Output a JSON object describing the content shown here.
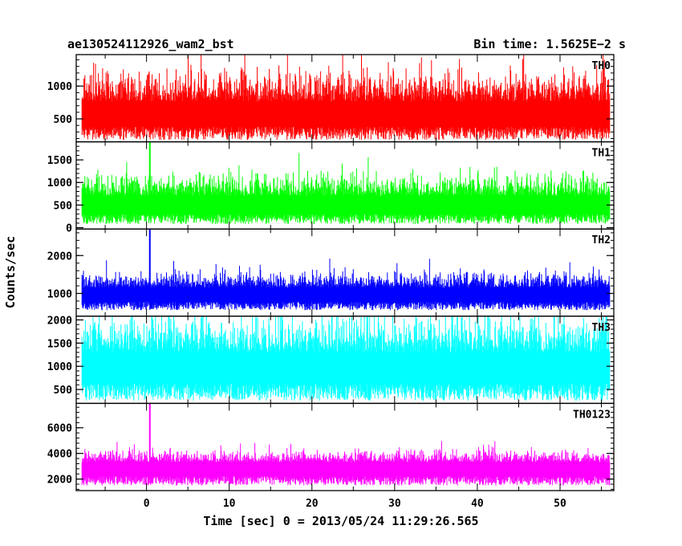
{
  "header": {
    "left": "ae130524112926_wam2_bst",
    "right": "Bin time: 1.5625E−2 s"
  },
  "chart_data": {
    "type": "line",
    "xlabel": "Time [sec] 0 = 2013/05/24 11:29:26.565",
    "ylabel": "Counts/sec",
    "xlim": [
      -8.5,
      56.5
    ],
    "xticks": [
      0,
      10,
      20,
      30,
      40,
      50
    ],
    "xtick_labels": [
      "0",
      "10",
      "20",
      "30",
      "40",
      "50"
    ],
    "x_data_range": [
      -7.8,
      56.0
    ],
    "series": [
      {
        "name": "TH0",
        "color": "#ff0000",
        "ylim": [
          150,
          1480
        ],
        "yticks": [
          500,
          1000
        ],
        "ytick_labels": [
          "500",
          "1000"
        ],
        "baseline": 580,
        "noise": 260,
        "floor": 180,
        "spike_at": null,
        "spike_value": null
      },
      {
        "name": "TH1",
        "color": "#00ff00",
        "ylim": [
          -30,
          1900
        ],
        "yticks": [
          0,
          500,
          1000,
          1500
        ],
        "ytick_labels": [
          "0",
          "500",
          "1000",
          "1500"
        ],
        "baseline": 520,
        "noise": 260,
        "floor": 80,
        "spike_at": 0.4,
        "spike_value": 1900
      },
      {
        "name": "TH2",
        "color": "#0000ff",
        "ylim": [
          400,
          2700
        ],
        "yticks": [
          1000,
          2000
        ],
        "ytick_labels": [
          "1000",
          "2000"
        ],
        "baseline": 1000,
        "noise": 220,
        "floor": 560,
        "spike_at": 0.4,
        "spike_value": 2700
      },
      {
        "name": "TH3",
        "color": "#00ffff",
        "ylim": [
          200,
          2080
        ],
        "yticks": [
          500,
          1000,
          1500,
          2000
        ],
        "ytick_labels": [
          "500",
          "1000",
          "1500",
          "2000"
        ],
        "baseline": 1000,
        "noise": 420,
        "floor": 260,
        "spike_at": null,
        "spike_value": null
      },
      {
        "name": "TH0123",
        "color": "#ff00ff",
        "ylim": [
          1100,
          7900
        ],
        "yticks": [
          2000,
          4000,
          6000
        ],
        "ytick_labels": [
          "2000",
          "4000",
          "6000"
        ],
        "baseline": 2950,
        "noise": 500,
        "floor": 1500,
        "spike_at": 0.4,
        "spike_value": 7900
      }
    ]
  }
}
